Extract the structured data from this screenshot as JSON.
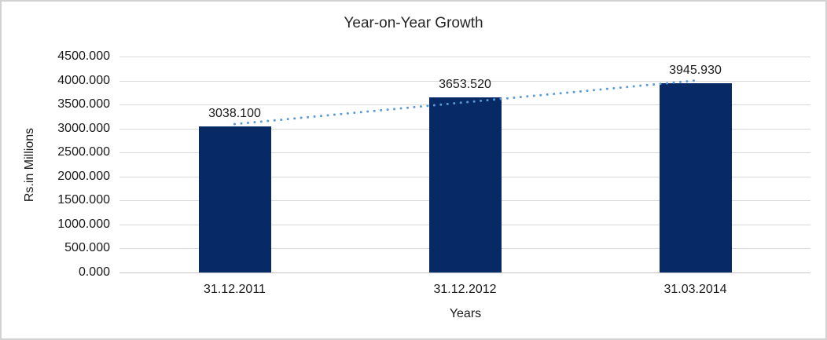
{
  "chart_data": {
    "type": "bar",
    "title": "Year-on-Year Growth",
    "xlabel": "Years",
    "ylabel": "Rs.in Millions",
    "categories": [
      "31.12.2011",
      "31.12.2012",
      "31.03.2014"
    ],
    "values": [
      3038.1,
      3653.52,
      3945.93
    ],
    "data_labels": [
      "3038.100",
      "3653.520",
      "3945.930"
    ],
    "ylim": [
      0,
      4500
    ],
    "y_tick_step": 500,
    "y_tick_labels": [
      "0.000",
      "500.000",
      "1000.000",
      "1500.000",
      "2000.000",
      "2500.000",
      "3000.000",
      "3500.000",
      "4000.000",
      "4500.000"
    ],
    "grid": true,
    "legend": "none",
    "colors": {
      "bar": "#072965",
      "trendline": "#5b9bd5",
      "gridline": "#d9d9d9",
      "axis_line": "#c6c6c6",
      "text": "#1a1a1a",
      "title": "#262626"
    },
    "trendline": {
      "type": "linear",
      "style": "dotted"
    }
  }
}
